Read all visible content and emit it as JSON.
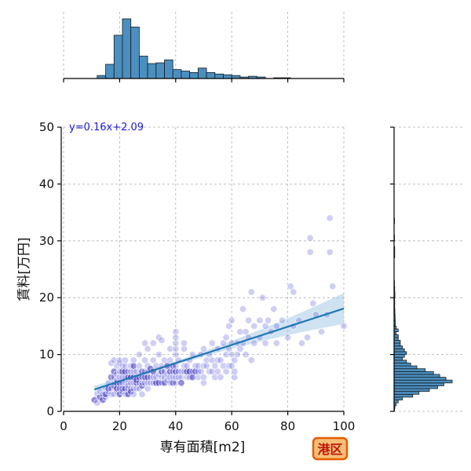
{
  "badge": {
    "label": "港区"
  },
  "chart_data": {
    "type": "scatter",
    "xlabel": "専有面積[m2]",
    "ylabel": "賃料[万円]",
    "xlim": [
      0,
      100
    ],
    "ylim": [
      0,
      50
    ],
    "xticks": [
      0,
      20,
      40,
      60,
      80,
      100
    ],
    "yticks": [
      0,
      10,
      20,
      30,
      40,
      50
    ],
    "grid": true,
    "regression": {
      "equation": "y=0.16x+2.09",
      "slope": 0.16,
      "intercept": 2.09,
      "x_range": [
        11,
        100
      ],
      "color": "#1f77b4",
      "band_color": "#a8cbe6"
    },
    "point_color": "#5b5bd6",
    "marginal_x_hist": {
      "bin_edges": [
        0,
        12,
        15,
        18,
        21,
        24,
        27,
        30,
        33,
        36,
        39,
        42,
        45,
        48,
        51,
        54,
        57,
        60,
        63,
        66,
        69,
        72,
        75,
        78,
        81,
        84,
        87,
        90,
        93,
        96,
        100
      ],
      "counts": [
        0,
        4,
        19,
        58,
        80,
        69,
        30,
        20,
        21,
        25,
        12,
        10,
        8,
        14,
        8,
        6,
        5,
        4,
        2,
        3,
        2,
        0,
        1,
        1,
        0,
        0,
        0,
        0,
        0,
        0
      ],
      "color": "#4a8fc0"
    },
    "marginal_y_hist": {
      "bins": [
        [
          0.0,
          0.5,
          0.2
        ],
        [
          0.5,
          1.0,
          0.4
        ],
        [
          1.0,
          1.5,
          1.0
        ],
        [
          1.5,
          2.0,
          2.0
        ],
        [
          2.0,
          2.5,
          4.0
        ],
        [
          2.5,
          3.0,
          9.0
        ],
        [
          3.0,
          3.5,
          12.0
        ],
        [
          3.5,
          4.0,
          17.0
        ],
        [
          4.0,
          4.5,
          21.0
        ],
        [
          4.5,
          5.0,
          24.0
        ],
        [
          5.0,
          5.5,
          28.0
        ],
        [
          5.5,
          6.0,
          25.0
        ],
        [
          6.0,
          6.5,
          22.0
        ],
        [
          6.5,
          7.0,
          19.0
        ],
        [
          7.0,
          7.5,
          15.0
        ],
        [
          7.5,
          8.0,
          11.0
        ],
        [
          8.0,
          8.5,
          8.0
        ],
        [
          8.5,
          9.0,
          6.0
        ],
        [
          9.0,
          9.5,
          4.0
        ],
        [
          9.5,
          10.0,
          5.0
        ],
        [
          10.0,
          10.5,
          6.0
        ],
        [
          10.5,
          11.0,
          5.0
        ],
        [
          11.0,
          11.5,
          4.0
        ],
        [
          11.5,
          12.0,
          3.0
        ],
        [
          12.0,
          12.5,
          3.0
        ],
        [
          12.5,
          13.0,
          2.0
        ],
        [
          13.0,
          13.5,
          2.0
        ],
        [
          13.5,
          14.0,
          1.0
        ],
        [
          14.0,
          14.5,
          2.0
        ],
        [
          14.5,
          15.0,
          1.0
        ],
        [
          15.0,
          16.0,
          0.6
        ],
        [
          16.0,
          17.0,
          0.5
        ],
        [
          17.0,
          18.0,
          0.4
        ],
        [
          18.0,
          19.0,
          0.3
        ],
        [
          19.0,
          20.0,
          0.3
        ],
        [
          20.0,
          21.0,
          0.4
        ],
        [
          21.0,
          22.0,
          0.3
        ],
        [
          22.0,
          23.0,
          0.2
        ],
        [
          27.0,
          28.0,
          0.3
        ],
        [
          28.0,
          29.0,
          0.3
        ],
        [
          30.0,
          31.0,
          0.2
        ],
        [
          33.0,
          34.0,
          0.2
        ]
      ],
      "color": "#4a8fc0"
    },
    "points": [
      [
        11,
        2
      ],
      [
        12,
        3
      ],
      [
        12,
        1.5
      ],
      [
        13,
        2.5
      ],
      [
        13,
        3.5
      ],
      [
        14,
        3
      ],
      [
        14,
        2
      ],
      [
        15,
        4
      ],
      [
        15,
        2.5
      ],
      [
        15,
        3
      ],
      [
        16,
        3.5
      ],
      [
        16,
        5
      ],
      [
        16,
        4
      ],
      [
        17,
        4
      ],
      [
        17,
        3
      ],
      [
        17,
        6
      ],
      [
        17,
        8.5
      ],
      [
        18,
        3
      ],
      [
        18,
        4.5
      ],
      [
        18,
        5
      ],
      [
        18,
        6
      ],
      [
        18,
        7
      ],
      [
        18,
        9
      ],
      [
        19,
        3.5
      ],
      [
        19,
        5
      ],
      [
        19,
        5.5
      ],
      [
        19,
        6.5
      ],
      [
        19,
        4
      ],
      [
        19,
        8
      ],
      [
        20,
        4
      ],
      [
        20,
        5
      ],
      [
        20,
        6
      ],
      [
        20,
        7
      ],
      [
        20,
        3
      ],
      [
        20,
        8.5
      ],
      [
        20,
        9
      ],
      [
        21,
        4
      ],
      [
        21,
        5
      ],
      [
        21,
        6
      ],
      [
        21,
        7
      ],
      [
        21,
        3.5
      ],
      [
        21,
        8
      ],
      [
        22,
        4
      ],
      [
        22,
        5
      ],
      [
        22,
        6
      ],
      [
        22,
        7
      ],
      [
        22,
        8
      ],
      [
        22,
        3
      ],
      [
        22,
        9
      ],
      [
        23,
        4
      ],
      [
        23,
        5
      ],
      [
        23,
        6
      ],
      [
        23,
        7
      ],
      [
        23,
        4.5
      ],
      [
        23,
        3
      ],
      [
        24,
        4
      ],
      [
        24,
        5
      ],
      [
        24,
        6
      ],
      [
        24,
        7
      ],
      [
        24,
        8
      ],
      [
        24,
        3.5
      ],
      [
        25,
        4
      ],
      [
        25,
        5
      ],
      [
        25,
        6
      ],
      [
        25,
        7
      ],
      [
        25,
        3
      ],
      [
        25,
        8
      ],
      [
        25,
        9
      ],
      [
        26,
        4
      ],
      [
        26,
        5
      ],
      [
        26,
        6
      ],
      [
        26,
        7
      ],
      [
        26,
        5.5
      ],
      [
        27,
        4
      ],
      [
        27,
        5
      ],
      [
        27,
        6
      ],
      [
        27,
        8
      ],
      [
        27,
        10
      ],
      [
        28,
        4.5
      ],
      [
        28,
        5
      ],
      [
        28,
        6
      ],
      [
        28,
        7
      ],
      [
        28,
        3
      ],
      [
        29,
        5
      ],
      [
        29,
        6
      ],
      [
        29,
        7
      ],
      [
        29,
        9
      ],
      [
        29,
        12
      ],
      [
        30,
        4
      ],
      [
        30,
        5
      ],
      [
        30,
        6
      ],
      [
        30,
        7
      ],
      [
        30,
        8
      ],
      [
        30,
        11
      ],
      [
        31,
        5
      ],
      [
        31,
        6
      ],
      [
        31,
        7.5
      ],
      [
        32,
        5
      ],
      [
        32,
        6
      ],
      [
        32,
        7
      ],
      [
        32,
        9
      ],
      [
        32,
        12
      ],
      [
        33,
        5
      ],
      [
        33,
        6
      ],
      [
        33,
        8
      ],
      [
        34,
        5
      ],
      [
        34,
        6.5
      ],
      [
        34,
        10
      ],
      [
        34,
        13
      ],
      [
        35,
        5
      ],
      [
        35,
        6
      ],
      [
        35,
        7
      ],
      [
        35,
        8
      ],
      [
        35,
        12.5
      ],
      [
        36,
        5
      ],
      [
        36,
        6
      ],
      [
        36,
        7
      ],
      [
        36,
        9
      ],
      [
        37,
        5.5
      ],
      [
        37,
        6.5
      ],
      [
        37,
        8
      ],
      [
        38,
        5
      ],
      [
        38,
        6
      ],
      [
        38,
        7
      ],
      [
        38,
        9
      ],
      [
        38,
        11
      ],
      [
        39,
        5
      ],
      [
        39,
        6
      ],
      [
        39,
        7
      ],
      [
        39,
        8
      ],
      [
        40,
        5
      ],
      [
        40,
        6
      ],
      [
        40,
        7
      ],
      [
        40,
        8
      ],
      [
        40,
        10
      ],
      [
        40,
        12
      ],
      [
        40,
        13
      ],
      [
        40,
        14
      ],
      [
        40,
        11
      ],
      [
        41,
        6
      ],
      [
        41,
        7
      ],
      [
        41,
        9
      ],
      [
        42,
        6
      ],
      [
        42,
        7
      ],
      [
        42,
        5
      ],
      [
        43,
        7
      ],
      [
        43,
        8
      ],
      [
        43,
        11
      ],
      [
        43,
        12
      ],
      [
        44,
        6
      ],
      [
        44,
        7
      ],
      [
        44,
        8
      ],
      [
        45,
        6
      ],
      [
        45,
        7
      ],
      [
        45,
        9
      ],
      [
        46,
        7
      ],
      [
        46,
        6
      ],
      [
        46,
        10
      ],
      [
        47,
        8
      ],
      [
        47,
        7
      ],
      [
        48,
        6
      ],
      [
        48,
        7
      ],
      [
        48,
        8
      ],
      [
        49,
        7
      ],
      [
        49,
        10
      ],
      [
        50,
        5
      ],
      [
        50,
        6
      ],
      [
        50,
        8
      ],
      [
        50,
        11
      ],
      [
        51,
        8
      ],
      [
        51,
        9
      ],
      [
        52,
        7
      ],
      [
        52,
        10
      ],
      [
        53,
        7
      ],
      [
        53,
        9
      ],
      [
        53,
        12
      ],
      [
        54,
        6
      ],
      [
        54,
        8
      ],
      [
        55,
        7
      ],
      [
        55,
        9
      ],
      [
        55,
        11
      ],
      [
        56,
        6
      ],
      [
        56,
        9
      ],
      [
        57,
        8
      ],
      [
        57,
        12
      ],
      [
        58,
        7
      ],
      [
        58,
        10
      ],
      [
        58,
        13
      ],
      [
        59,
        8
      ],
      [
        59,
        11
      ],
      [
        59,
        15
      ],
      [
        60,
        8
      ],
      [
        60,
        10
      ],
      [
        60,
        12
      ],
      [
        60,
        16
      ],
      [
        61,
        6
      ],
      [
        61,
        7
      ],
      [
        61,
        9
      ],
      [
        62,
        10
      ],
      [
        62,
        12
      ],
      [
        63,
        11
      ],
      [
        63,
        14
      ],
      [
        64,
        12
      ],
      [
        64,
        18
      ],
      [
        65,
        10
      ],
      [
        65,
        14
      ],
      [
        66,
        13
      ],
      [
        66,
        16
      ],
      [
        67,
        9
      ],
      [
        67,
        21
      ],
      [
        68,
        12
      ],
      [
        68,
        15
      ],
      [
        70,
        16
      ],
      [
        70,
        13
      ],
      [
        71,
        20
      ],
      [
        72,
        12
      ],
      [
        72,
        15
      ],
      [
        73,
        16
      ],
      [
        74,
        14
      ],
      [
        75,
        18
      ],
      [
        76,
        12
      ],
      [
        76,
        15
      ],
      [
        78,
        16
      ],
      [
        80,
        13
      ],
      [
        81,
        22
      ],
      [
        82,
        21
      ],
      [
        82,
        15
      ],
      [
        84,
        16
      ],
      [
        85,
        12
      ],
      [
        87,
        13
      ],
      [
        88,
        30.5
      ],
      [
        88,
        28
      ],
      [
        89,
        19
      ],
      [
        90,
        17
      ],
      [
        92,
        14
      ],
      [
        94,
        17
      ],
      [
        95,
        28
      ],
      [
        95,
        34
      ],
      [
        96,
        22
      ],
      [
        100,
        15
      ]
    ]
  }
}
